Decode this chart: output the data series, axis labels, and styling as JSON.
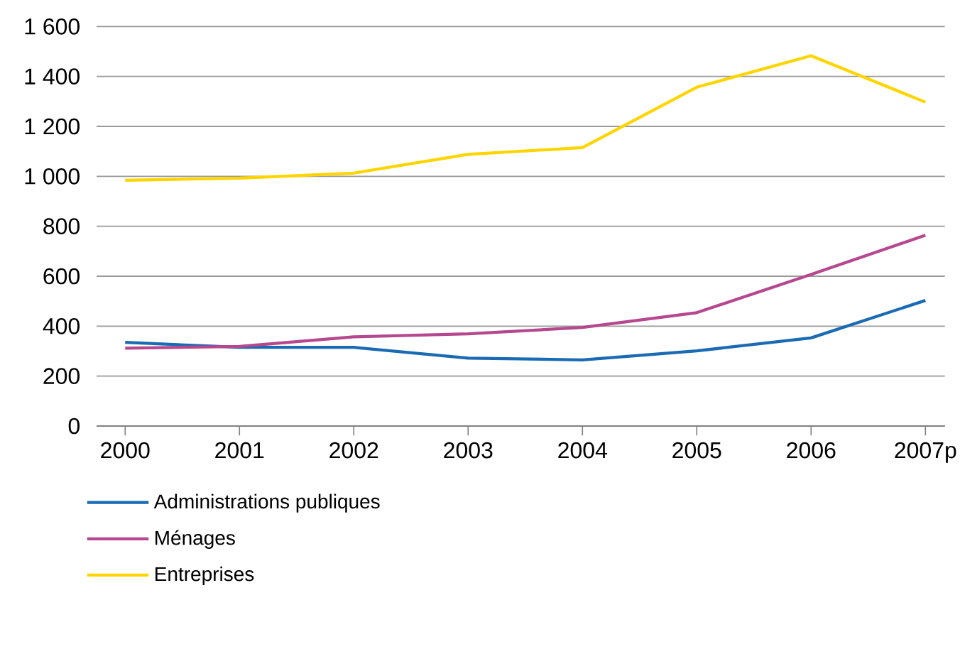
{
  "chart_data": {
    "type": "line",
    "categories": [
      "2000",
      "2001",
      "2002",
      "2003",
      "2004",
      "2005",
      "2006",
      "2007p"
    ],
    "series": [
      {
        "name": "Administrations publiques",
        "color": "#1a6bb3",
        "values": [
          335,
          315,
          315,
          272,
          265,
          301,
          353,
          503
        ]
      },
      {
        "name": "Ménages",
        "color": "#b5488f",
        "values": [
          312,
          319,
          357,
          369,
          395,
          454,
          607,
          764
        ]
      },
      {
        "name": "Entreprises",
        "color": "#ffd500",
        "values": [
          984,
          993,
          1013,
          1088,
          1115,
          1357,
          1483,
          1297
        ]
      }
    ],
    "ylim": [
      0,
      1600
    ],
    "yticks": [
      0,
      200,
      400,
      600,
      800,
      {
        "value": 1000,
        "label": "1 000"
      },
      {
        "value": 1200,
        "label": "1 200"
      },
      {
        "value": 1400,
        "label": "1 400"
      },
      {
        "value": 1600,
        "label": "1 600"
      }
    ],
    "grid": "y",
    "legend": "bottom",
    "marker": "none",
    "line_style": "solid"
  }
}
